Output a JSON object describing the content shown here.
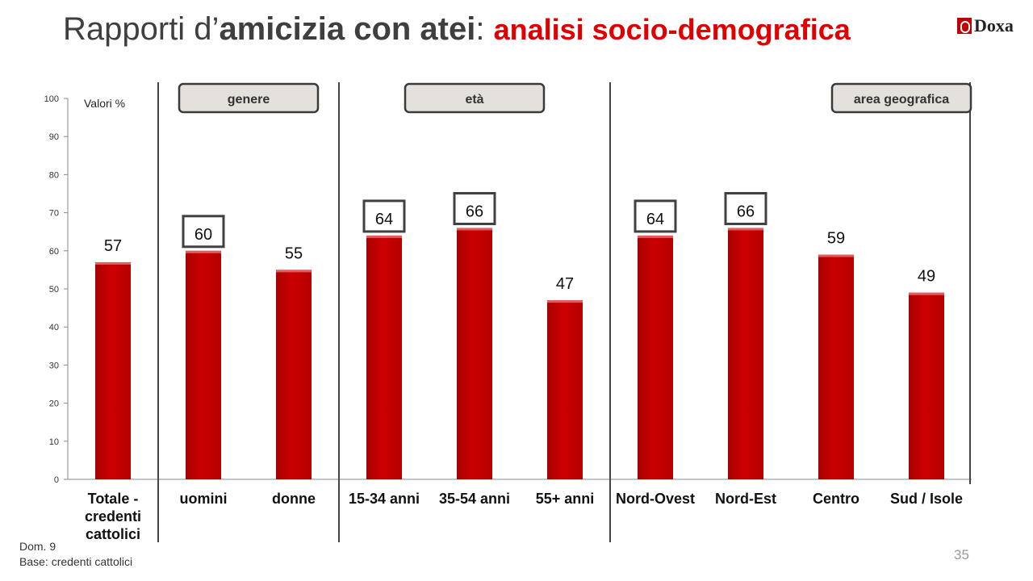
{
  "header": {
    "title_regular_1": "Rapporti d’",
    "title_bold": "amicizia con atei",
    "title_regular_2": ": ",
    "title_red": "analisi socio-demografica",
    "logo_text": "Doxa"
  },
  "footer": {
    "note_line1": "Dom. 9",
    "note_line2": "Base: credenti cattolici",
    "page_number": "35"
  },
  "colors": {
    "bar": "#cc0000",
    "title_red": "#e00000",
    "group_box": "#e4e0dc"
  },
  "chart_data": {
    "type": "bar",
    "title": "",
    "ylabel": "Valori %",
    "ylim": [
      0,
      100
    ],
    "yticks": [
      0,
      10,
      20,
      30,
      40,
      50,
      60,
      70,
      80,
      90,
      100
    ],
    "categories": [
      [
        "Totale -",
        "credenti",
        "cattolici"
      ],
      [
        "uomini"
      ],
      [
        "donne"
      ],
      [
        "15-34 anni"
      ],
      [
        "35-54 anni"
      ],
      [
        "55+ anni"
      ],
      [
        "Nord-Ovest"
      ],
      [
        "Nord-Est"
      ],
      [
        "Centro"
      ],
      [
        "Sud / Isole"
      ]
    ],
    "values": [
      57,
      60,
      55,
      64,
      66,
      47,
      64,
      66,
      59,
      49
    ],
    "boxed": [
      false,
      true,
      false,
      true,
      true,
      false,
      true,
      true,
      false,
      false
    ],
    "groups": [
      {
        "label": "genere",
        "from": 1,
        "to": 2
      },
      {
        "label": "età",
        "from": 3,
        "to": 5
      },
      {
        "label": "area geografica",
        "from": 6,
        "to": 9
      }
    ]
  }
}
